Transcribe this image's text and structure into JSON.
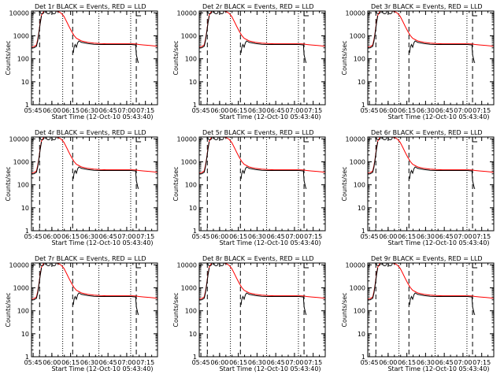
{
  "chart_data": {
    "type": "line",
    "ylabel": "Counts/sec",
    "xlabel": "Start Time (12-Oct-10 05:43:40)",
    "x_ticks": [
      "05:45",
      "06:00",
      "06:15",
      "06:30",
      "06:45",
      "07:00",
      "07:15"
    ],
    "x_tick_values": [
      1.33,
      16.33,
      31.33,
      46.33,
      61.33,
      76.33,
      91.33
    ],
    "x_range": [
      0,
      101
    ],
    "y_ticks": [
      "1",
      "10",
      "100",
      "1000",
      "10000"
    ],
    "y_range": [
      1,
      12000
    ],
    "y_scale": "log",
    "colors": {
      "events": "#000000",
      "lld": "#ff0000"
    },
    "dashed_markers": [
      6.5,
      33.0,
      84.0
    ],
    "dotted_markers": [
      25.0,
      54.0,
      79.5
    ],
    "series_template": {
      "lld": {
        "x": [
          0,
          2,
          4,
          5,
          6,
          7,
          8,
          10,
          12,
          14,
          16,
          18,
          20,
          22,
          24,
          26,
          28,
          30,
          32,
          34,
          36,
          40,
          45,
          50,
          55,
          60,
          65,
          70,
          75,
          80,
          84,
          86,
          90,
          95,
          101
        ],
        "y": [
          330,
          340,
          400,
          700,
          1500,
          4000,
          8000,
          12000,
          12000,
          12000,
          12000,
          12000,
          12000,
          11000,
          9500,
          7000,
          4300,
          2600,
          1600,
          1050,
          780,
          600,
          520,
          480,
          460,
          450,
          450,
          450,
          450,
          450,
          440,
          420,
          400,
          380,
          350
        ]
      },
      "events": {
        "x": [
          0,
          2,
          4,
          5,
          6,
          7,
          8,
          33,
          33.5,
          34,
          35,
          36,
          37,
          38,
          40,
          45,
          50,
          55,
          60,
          65,
          70,
          75,
          80,
          83.5,
          84,
          85.5,
          86
        ],
        "y": [
          290,
          300,
          350,
          600,
          1400,
          3500,
          7500,
          null,
          180,
          300,
          420,
          320,
          500,
          600,
          520,
          460,
          430,
          420,
          420,
          420,
          420,
          420,
          420,
          400,
          150,
          70,
          70
        ]
      },
      "peak_markers": [
        8.5,
        13.5,
        18.0
      ]
    },
    "panels": [
      {
        "title": "Det 1r BLACK = Events, RED = LLD"
      },
      {
        "title": "Det 2r BLACK = Events, RED = LLD"
      },
      {
        "title": "Det 3r BLACK = Events, RED = LLD"
      },
      {
        "title": "Det 4r BLACK = Events, RED = LLD"
      },
      {
        "title": "Det 5r BLACK = Events, RED = LLD"
      },
      {
        "title": "Det 6r BLACK = Events, RED = LLD"
      },
      {
        "title": "Det 7r BLACK = Events, RED = LLD"
      },
      {
        "title": "Det 8r BLACK = Events, RED = LLD"
      },
      {
        "title": "Det 9r BLACK = Events, RED = LLD"
      }
    ]
  }
}
